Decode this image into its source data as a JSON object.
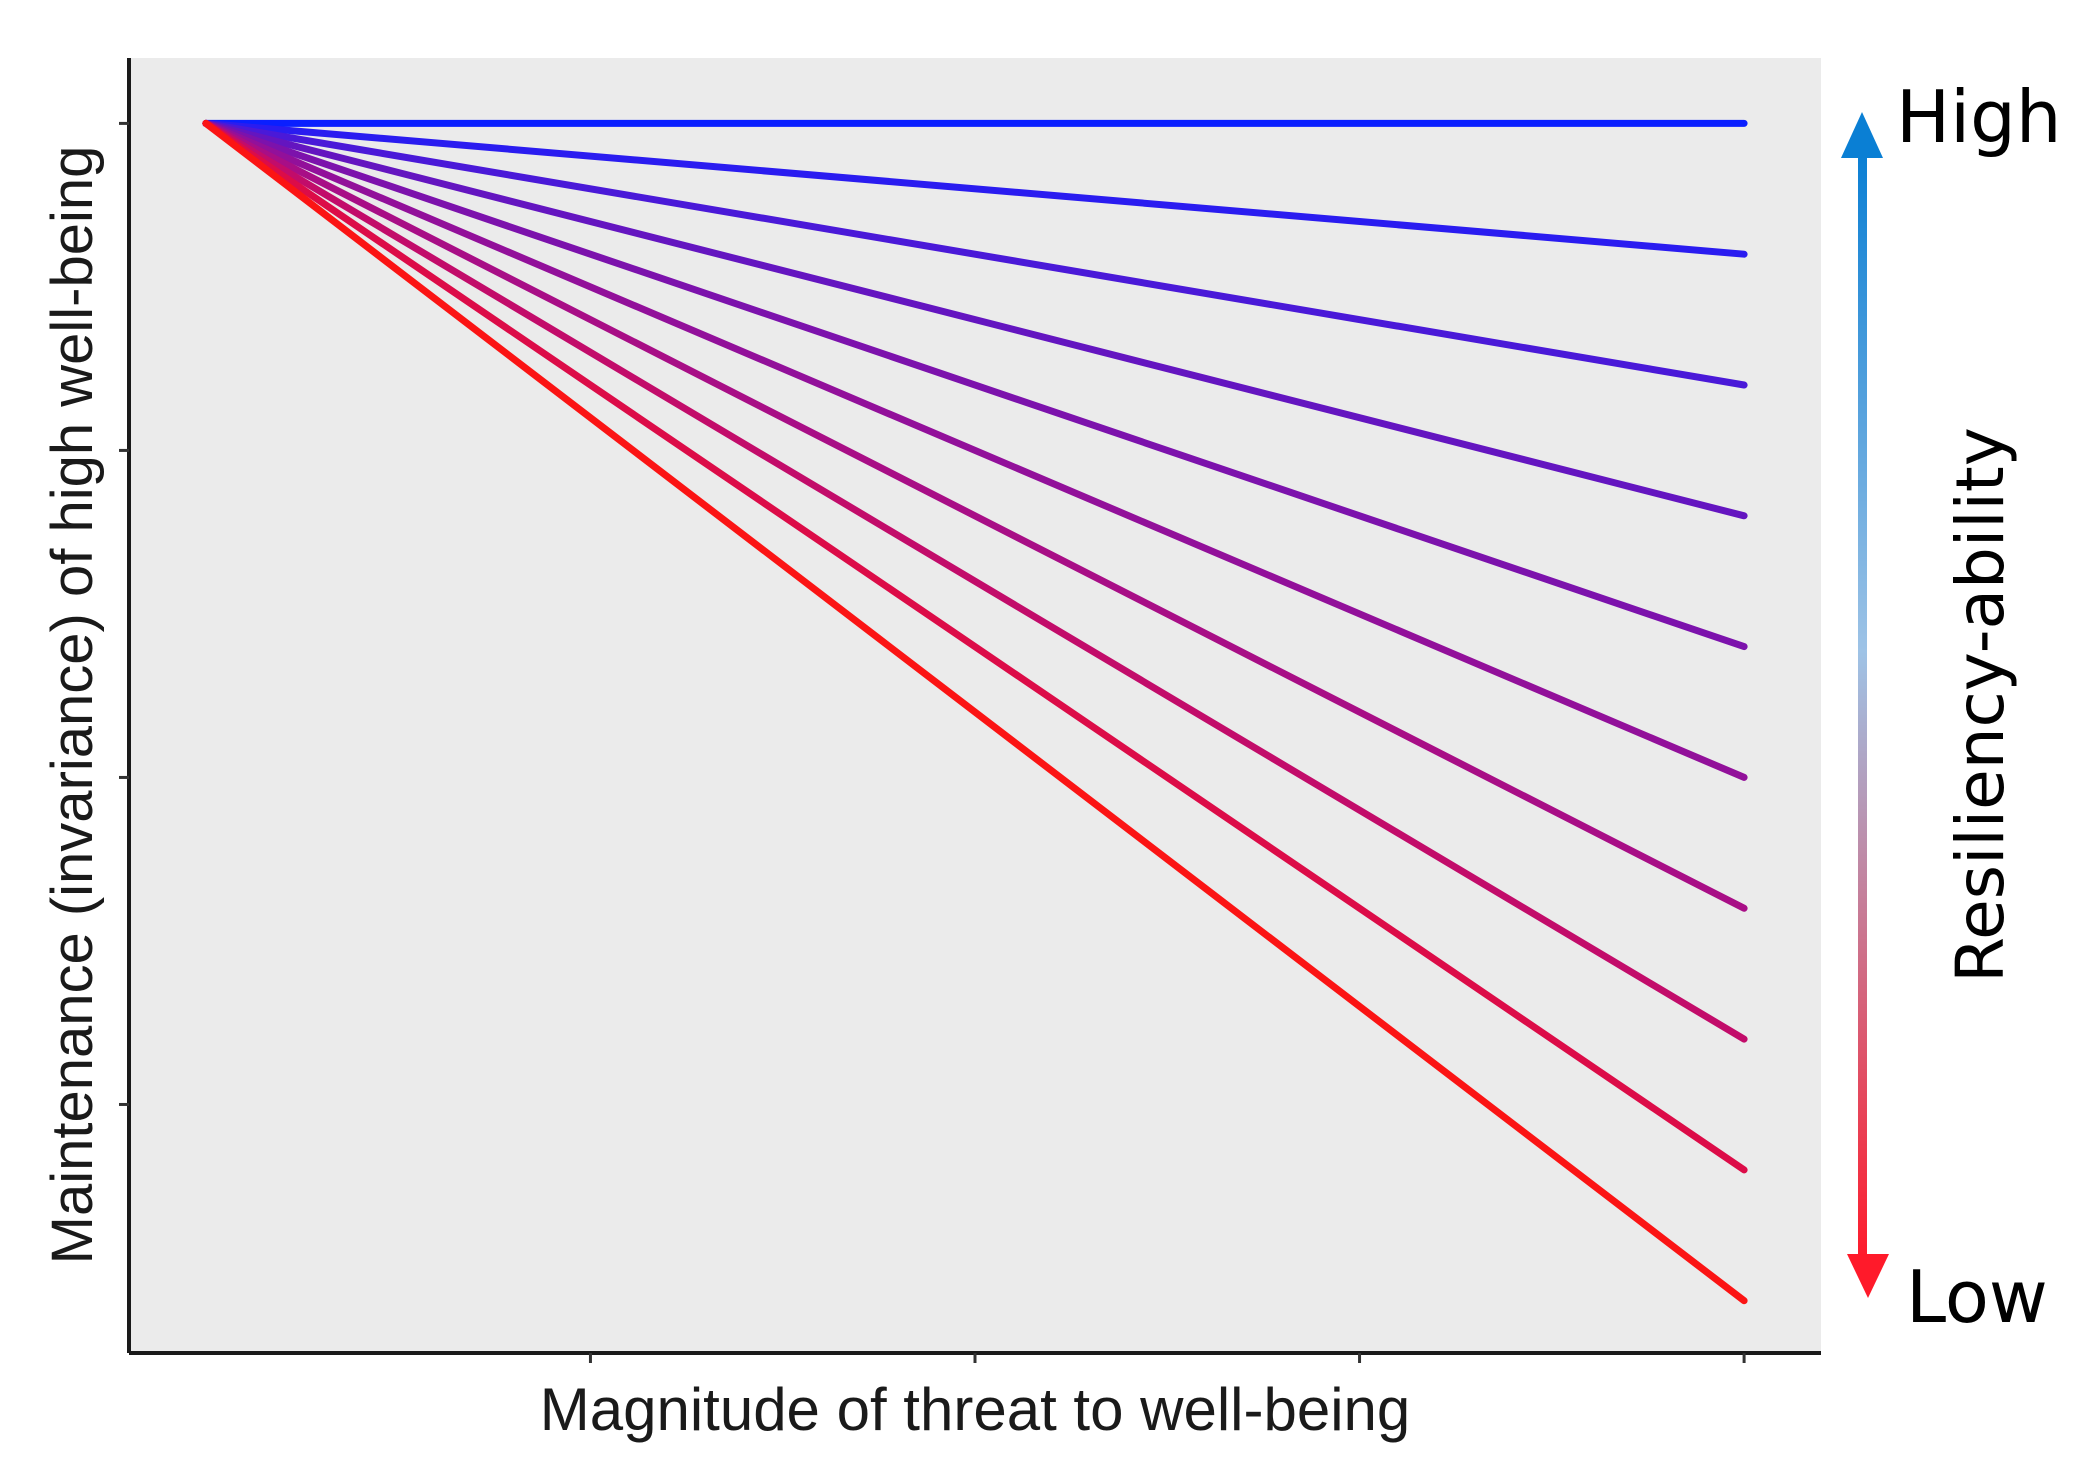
{
  "chart_data": {
    "type": "line",
    "title": "",
    "xlabel": "Magnitude of threat to well-being",
    "ylabel": "Maintenance (invariance) of high well-being",
    "x": [
      0,
      1
    ],
    "xlim": [
      -0.05,
      1.05
    ],
    "ylim": [
      0.06,
      1.05
    ],
    "grid": false,
    "background_color": "#ebebeb",
    "series": [
      {
        "values": [
          1,
          1.0
        ],
        "color": "#0a1fff"
      },
      {
        "values": [
          1,
          0.9
        ],
        "color": "#2a1cf0"
      },
      {
        "values": [
          1,
          0.8
        ],
        "color": "#4a19d8"
      },
      {
        "values": [
          1,
          0.7
        ],
        "color": "#6415c0"
      },
      {
        "values": [
          1,
          0.6
        ],
        "color": "#7c12ac"
      },
      {
        "values": [
          1,
          0.5
        ],
        "color": "#92109a"
      },
      {
        "values": [
          1,
          0.4
        ],
        "color": "#a80e86"
      },
      {
        "values": [
          1,
          0.3
        ],
        "color": "#c20c6a"
      },
      {
        "values": [
          1,
          0.2
        ],
        "color": "#dc0c48"
      },
      {
        "values": [
          1,
          0.1
        ],
        "color": "#fb1414"
      }
    ],
    "annotations": {
      "scale_label": "Resiliency-ability",
      "high_label": "High",
      "low_label": "Low",
      "arrow_top_color": "#0a7fd4",
      "arrow_mid_color": "#9ec3e6",
      "arrow_bottom_color": "#ff1a2a"
    }
  }
}
